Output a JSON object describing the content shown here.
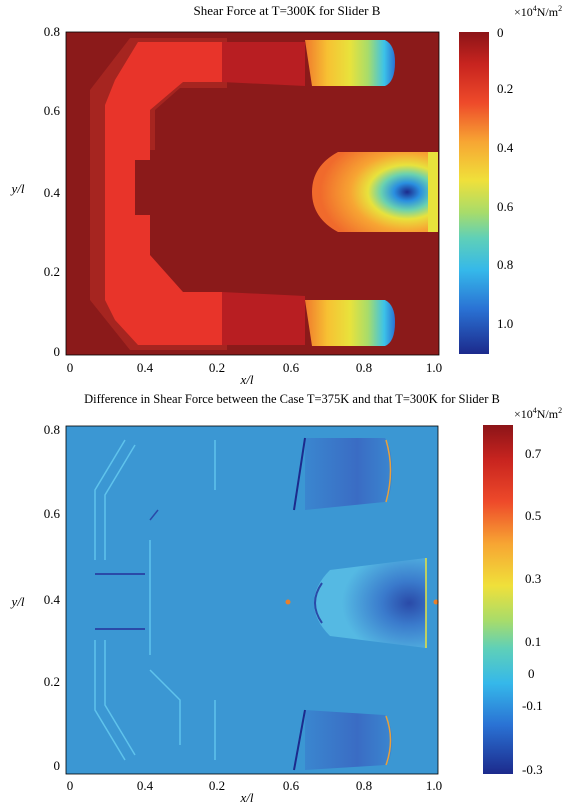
{
  "colors": {
    "jet": [
      "#1c2a8c",
      "#2458c8",
      "#2a8fe0",
      "#3cc3e8",
      "#6ad1b0",
      "#a8dc6a",
      "#e8e23c",
      "#f7b733",
      "#f07a2c",
      "#e8342a",
      "#b81e22",
      "#8c1418"
    ],
    "plot1_background": "#8b1a1a",
    "plot2_background": "#3b97d3"
  },
  "plot1": {
    "title": "Shear Force at T=300K for Slider B",
    "xlabel": "x/l",
    "ylabel": "y/l",
    "x_ticks": [
      "0",
      "0.4",
      "0.2",
      "0.6",
      "0.8",
      "1.0"
    ],
    "y_ticks": [
      "0.8",
      "0.6",
      "0.4",
      "0.2",
      "0"
    ],
    "colorbar": {
      "unit_prefix": "×10",
      "unit_exp": "4",
      "unit_suffix": "N/m",
      "unit_sq": "2",
      "ticks": [
        "0",
        "0.2",
        "0.4",
        "0.6",
        "0.8",
        "1.0"
      ]
    }
  },
  "plot2": {
    "title": "Difference in Shear Force between the Case T=375K and that T=300K for Slider B",
    "xlabel": "x/l",
    "ylabel": "y/l",
    "x_ticks": [
      "0",
      "0.4",
      "0.2",
      "0.6",
      "0.8",
      "1.0"
    ],
    "y_ticks": [
      "0.8",
      "0.6",
      "0.4",
      "0.2",
      "0"
    ],
    "colorbar": {
      "unit_prefix": "×10",
      "unit_exp": "4",
      "unit_suffix": "N/m",
      "unit_sq": "2",
      "ticks": [
        "0.7",
        "0.5",
        "0.3",
        "0.1",
        "0",
        "-0.1",
        "-0.3"
      ]
    }
  },
  "chart_data": [
    {
      "type": "heatmap",
      "title": "Shear Force at T=300K for Slider B",
      "xlabel": "x/l",
      "ylabel": "y/l",
      "xlim": [
        0,
        1.0
      ],
      "ylim": [
        0,
        0.8
      ],
      "colorbar_range": [
        0,
        1.1
      ],
      "colorbar_ticks": [
        0,
        0.2,
        0.4,
        0.6,
        0.8,
        1.0
      ],
      "colorbar_unit": "×10^4 N/m^2"
    },
    {
      "type": "heatmap",
      "title": "Difference in Shear Force between the Case T=375K and that T=300K for Slider B",
      "xlabel": "x/l",
      "ylabel": "y/l",
      "xlim": [
        0,
        1.0
      ],
      "ylim": [
        0,
        0.8
      ],
      "colorbar_range": [
        -0.3,
        0.8
      ],
      "colorbar_ticks": [
        0.7,
        0.5,
        0.3,
        0.1,
        0,
        -0.1,
        -0.3
      ],
      "colorbar_unit": "×10^4 N/m^2"
    }
  ]
}
